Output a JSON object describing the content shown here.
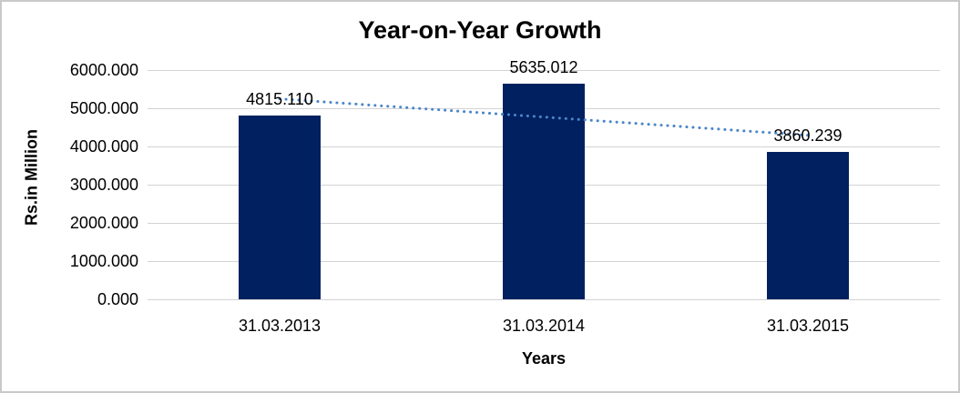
{
  "window": {
    "background_color": "#ffffff",
    "border_color": "#c9c9c9"
  },
  "chart_data": {
    "type": "bar",
    "title": "Year-on-Year Growth",
    "xlabel": "Years",
    "ylabel": "Rs.in Million",
    "categories": [
      "31.03.2013",
      "31.03.2014",
      "31.03.2015"
    ],
    "values": [
      4815.11,
      5635.012,
      3860.239
    ],
    "value_labels": [
      "4815.110",
      "5635.012",
      "3860.239"
    ],
    "ylim": [
      0,
      6000
    ],
    "ytick_step": 1000,
    "ytick_labels": [
      "0.000",
      "1000.000",
      "2000.000",
      "3000.000",
      "4000.000",
      "5000.000",
      "6000.000"
    ],
    "grid": true,
    "legend": "none",
    "bar_color": "#002060",
    "gridline_color": "#d3d3d3",
    "text_color": "#000000",
    "trendline": {
      "type": "linear",
      "style": "dotted",
      "color": "#4a86c8",
      "start_value": 5247.6,
      "end_value": 4292.6
    }
  }
}
